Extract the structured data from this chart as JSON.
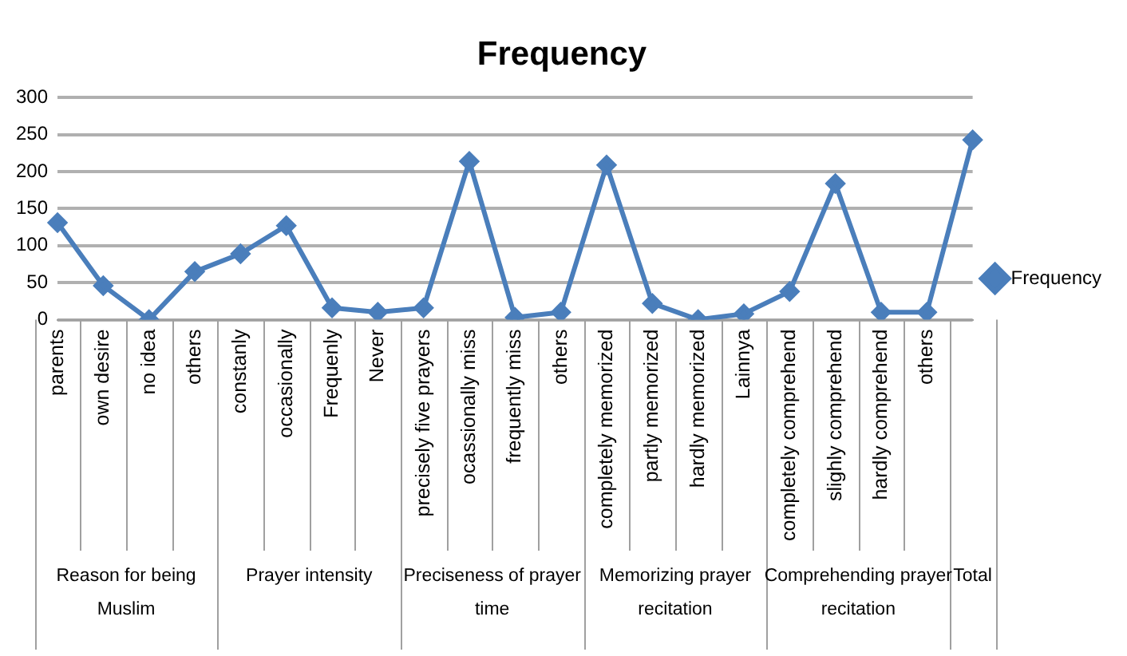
{
  "chart_data": {
    "type": "line",
    "title": "Frequency",
    "categories": [
      "parents",
      "own desire",
      "no idea",
      "others",
      "constanly",
      "occasionally",
      "Frequenly",
      "Never",
      "precisely five prayers",
      "ocassionally miss",
      "frequently miss",
      "others",
      "completely memorized",
      "partly memorized",
      "hardly memorized",
      "Lainnya",
      "completely comprehend",
      "slighly comprehend",
      "hardly comprehend",
      "others",
      null
    ],
    "series": [
      {
        "name": "Frequency",
        "color": "#4a7ebb",
        "values": [
          131,
          46,
          0,
          65,
          89,
          127,
          16,
          10,
          16,
          214,
          3,
          10,
          209,
          22,
          0,
          8,
          38,
          184,
          10,
          10,
          243
        ]
      }
    ],
    "ylim": [
      0,
      300
    ],
    "yticks": [
      0,
      50,
      100,
      150,
      200,
      250,
      300
    ],
    "grid": "y",
    "legend": "right",
    "marker": "diamond",
    "line_style": "solid",
    "annotations": [
      "Reason for being Muslim",
      "Prayer intensity",
      "Preciseness of prayer time",
      "Memorizing prayer recitation",
      "Comprehending prayer recitation",
      "Total"
    ]
  }
}
